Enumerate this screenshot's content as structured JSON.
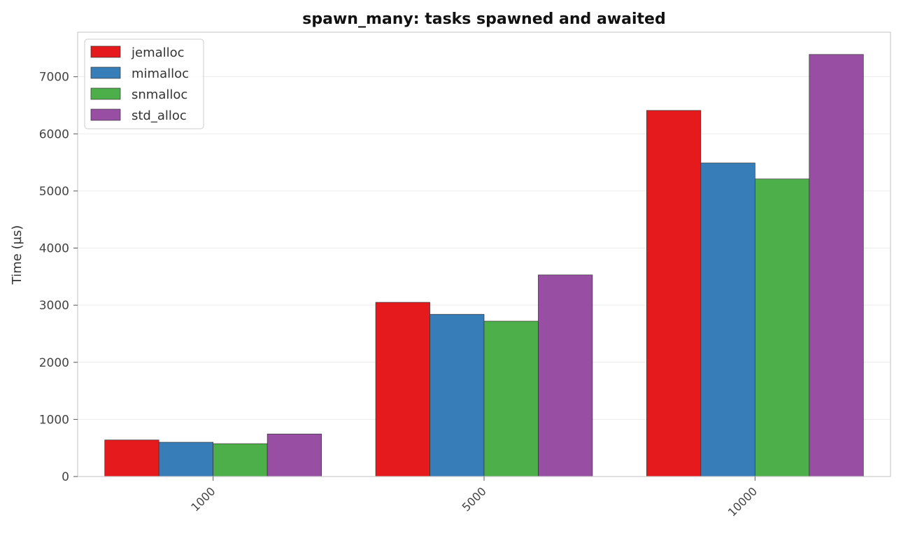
{
  "chart_data": {
    "type": "bar",
    "title": "spawn_many: tasks spawned and awaited",
    "xlabel": "",
    "ylabel": "Time (µs)",
    "categories": [
      "1000",
      "5000",
      "10000"
    ],
    "ylim": [
      0,
      7780
    ],
    "yticks": [
      0,
      1000,
      2000,
      3000,
      4000,
      5000,
      6000,
      7000
    ],
    "grid": true,
    "legend_position": "top-left",
    "series": [
      {
        "name": "jemalloc",
        "color": "#e41a1c",
        "values": [
          640,
          3050,
          6410
        ]
      },
      {
        "name": "mimalloc",
        "color": "#377eb8",
        "values": [
          600,
          2840,
          5490
        ]
      },
      {
        "name": "snmalloc",
        "color": "#4daf4a",
        "values": [
          575,
          2720,
          5210
        ]
      },
      {
        "name": "std_alloc",
        "color": "#984ea3",
        "values": [
          745,
          3530,
          7390
        ]
      }
    ]
  }
}
